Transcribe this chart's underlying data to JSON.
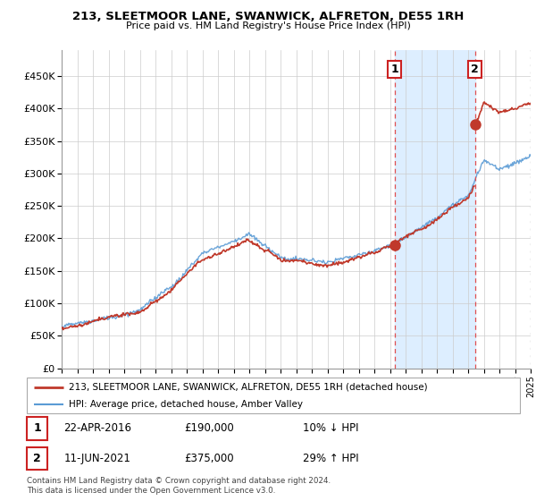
{
  "title": "213, SLEETMOOR LANE, SWANWICK, ALFRETON, DE55 1RH",
  "subtitle": "Price paid vs. HM Land Registry's House Price Index (HPI)",
  "legend_line1": "213, SLEETMOOR LANE, SWANWICK, ALFRETON, DE55 1RH (detached house)",
  "legend_line2": "HPI: Average price, detached house, Amber Valley",
  "annotation1_label": "1",
  "annotation1_date": "22-APR-2016",
  "annotation1_price": "£190,000",
  "annotation1_hpi": "10% ↓ HPI",
  "annotation1_year": 2016.3,
  "annotation1_value": 190000,
  "annotation2_label": "2",
  "annotation2_date": "11-JUN-2021",
  "annotation2_price": "£375,000",
  "annotation2_hpi": "29% ↑ HPI",
  "annotation2_year": 2021.44,
  "annotation2_value": 375000,
  "ytick_values": [
    0,
    50000,
    100000,
    150000,
    200000,
    250000,
    300000,
    350000,
    400000,
    450000
  ],
  "ytick_labels": [
    "£0",
    "£50K",
    "£100K",
    "£150K",
    "£200K",
    "£250K",
    "£300K",
    "£350K",
    "£400K",
    "£450K"
  ],
  "hpi_color": "#5b9bd5",
  "price_color": "#c0392b",
  "shade_color": "#ddeeff",
  "background_color": "#ffffff",
  "annotation_line_color": "#e05050",
  "footer": "Contains HM Land Registry data © Crown copyright and database right 2024.\nThis data is licensed under the Open Government Licence v3.0.",
  "xmin": 1995,
  "xmax": 2025
}
